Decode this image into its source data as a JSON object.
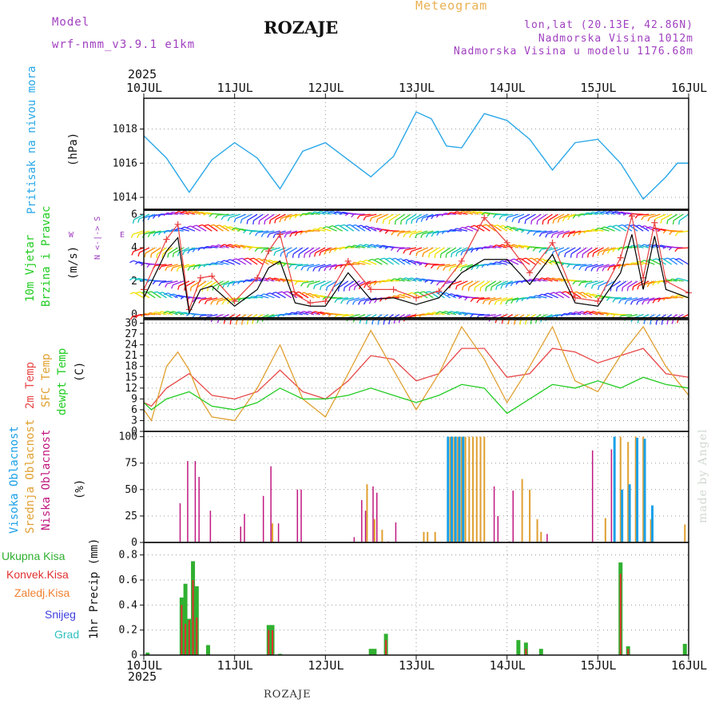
{
  "header": {
    "model_label": "Model",
    "model_name": "wrf-nmm_v3.9.1  e1km",
    "title": "ROZAJE",
    "product": "Meteogram",
    "location": "lon,lat (20.13E, 42.86N)",
    "elevation": "Nadmorska Visina 1012m",
    "model_elevation": "Nadmorska Visina u modelu 1176.68m",
    "year": "2025",
    "footer": "ROZAJE",
    "credit": "made by Angel"
  },
  "time_axis": {
    "labels": [
      "10JUL",
      "11JUL",
      "12JUL",
      "13JUL",
      "14JUL",
      "15JUL",
      "16JUL"
    ]
  },
  "panels": {
    "pressure": {
      "name": "Pritisak na nivou mora",
      "unit": "(hPa)",
      "ticks": [
        "1014",
        "1016",
        "1018"
      ]
    },
    "wind": {
      "name_1": "10m  Vjetar",
      "name_2": "Brzina i Pravac",
      "unit": "(m/s)",
      "ticks": [
        "0",
        "2",
        "4",
        "6"
      ],
      "compass_ns": "N <-|-> S",
      "compass_w": "W",
      "compass_e": "E"
    },
    "temp": {
      "name_1": "2m Temp",
      "name_2": "SFC Temp",
      "name_3": "dewpt Temp",
      "unit": "(C)",
      "ticks": [
        "0",
        "3",
        "6",
        "9",
        "12",
        "15",
        "18",
        "21",
        "24",
        "27",
        "30"
      ]
    },
    "cloud": {
      "name_1": "Visoka Oblacnost",
      "name_2": "Srednja Oblacnost",
      "name_3": "Niska Oblacnost",
      "unit": "(%)",
      "ticks": [
        "0",
        "25",
        "50",
        "75",
        "100"
      ]
    },
    "precip": {
      "legend": [
        "Ukupna  Kisa",
        "Konvek.Kisa",
        "Zaledj.Kisa",
        "Snijeg",
        "Grad"
      ],
      "unit": "1hr Precip (mm)",
      "ticks": [
        "0",
        "0.2",
        "0.4",
        "0.6",
        "0.8"
      ]
    }
  },
  "colors": {
    "pressure": "#2aa8e8",
    "wind_speed": "#000000",
    "wind_gust": "#e84040",
    "temp2m": "#e84848",
    "sfc": "#e0a030",
    "dewpt": "#22cc22",
    "cloud_high": "#1aa0e8",
    "cloud_mid": "#e0a030",
    "cloud_low": "#c01880",
    "precip_total": "#30b030",
    "precip_conv": "#e03030",
    "precip_frz": "#f08030",
    "snow": "#4040e0",
    "hail": "#30c0c0",
    "label_purple": "#a040c0"
  },
  "chart_data": [
    {
      "type": "line",
      "title": "Pritisak na nivou mora",
      "ylabel": "(hPa)",
      "x_unit": "hours since 10JUL 00UTC",
      "ylim": [
        1013.3,
        1019.8
      ],
      "series": [
        {
          "name": "Pritisak na nivou mora",
          "x": [
            0,
            6,
            12,
            18,
            24,
            30,
            36,
            42,
            48,
            54,
            60,
            66,
            72,
            76,
            80,
            84,
            90,
            96,
            102,
            108,
            114,
            120,
            126,
            132,
            138,
            141,
            144
          ],
          "values": [
            1017.6,
            1016.3,
            1014.3,
            1016.2,
            1017.2,
            1016.3,
            1014.5,
            1016.7,
            1017.2,
            1016.2,
            1015.2,
            1016.4,
            1019.0,
            1018.6,
            1017.0,
            1016.9,
            1018.9,
            1018.5,
            1017.4,
            1015.6,
            1017.2,
            1017.4,
            1016.0,
            1013.9,
            1015.2,
            1016.0,
            1016.0
          ]
        }
      ]
    },
    {
      "type": "line",
      "title": "10m Vjetar Brzina i Pravac",
      "ylabel": "(m/s)",
      "x_unit": "hours since 10JUL 00UTC",
      "ylim": [
        -0.3,
        6.3
      ],
      "series": [
        {
          "name": "speed",
          "x": [
            0,
            6,
            9,
            12,
            15,
            18,
            24,
            30,
            33,
            36,
            40,
            44,
            48,
            54,
            60,
            66,
            72,
            78,
            84,
            90,
            96,
            102,
            108,
            114,
            120,
            126,
            129,
            132,
            135,
            138,
            144
          ],
          "values": [
            1.0,
            3.8,
            4.6,
            0.1,
            1.5,
            1.7,
            0.5,
            1.5,
            2.8,
            3.2,
            0.7,
            0.5,
            0.5,
            2.5,
            0.9,
            1.0,
            0.6,
            1.0,
            2.5,
            3.3,
            3.3,
            1.8,
            3.6,
            0.7,
            0.5,
            2.5,
            4.8,
            1.5,
            4.7,
            1.5,
            1.0
          ]
        },
        {
          "name": "gust",
          "x": [
            0,
            6,
            9,
            12,
            15,
            18,
            24,
            30,
            33,
            36,
            40,
            44,
            48,
            54,
            60,
            66,
            72,
            78,
            84,
            90,
            96,
            102,
            108,
            114,
            120,
            126,
            129,
            132,
            135,
            138,
            144
          ],
          "values": [
            1.5,
            4.5,
            5.4,
            0.3,
            2.2,
            2.3,
            0.8,
            2.2,
            3.8,
            4.8,
            1.2,
            0.7,
            0.8,
            3.2,
            1.5,
            1.5,
            1.0,
            1.4,
            3.2,
            5.8,
            4.3,
            2.5,
            4.3,
            1.0,
            0.8,
            3.4,
            5.9,
            2.2,
            5.5,
            2.0,
            1.3
          ]
        }
      ]
    },
    {
      "type": "line",
      "title": "2m Temp / SFC Temp / dewpt Temp",
      "ylabel": "(C)",
      "x_unit": "hours since 10JUL 00UTC",
      "ylim": [
        0,
        31
      ],
      "series": [
        {
          "name": "2m Temp",
          "x": [
            0,
            2,
            6,
            12,
            15,
            18,
            24,
            30,
            36,
            42,
            48,
            54,
            60,
            66,
            72,
            78,
            84,
            90,
            96,
            102,
            108,
            114,
            120,
            126,
            132,
            138,
            144
          ],
          "values": [
            8,
            7,
            12,
            16,
            13,
            10,
            9,
            11,
            17,
            11,
            9,
            14,
            21,
            20,
            14,
            16,
            23,
            23,
            15,
            16,
            23,
            22,
            19,
            21,
            23,
            16,
            15
          ]
        },
        {
          "name": "SFC Temp",
          "x": [
            0,
            2,
            6,
            9,
            12,
            15,
            18,
            24,
            30,
            36,
            42,
            48,
            54,
            60,
            66,
            72,
            78,
            84,
            90,
            96,
            102,
            108,
            114,
            120,
            126,
            132,
            138,
            144
          ],
          "values": [
            6,
            3,
            18,
            22,
            17,
            9,
            4,
            3,
            12,
            24,
            9,
            4,
            16,
            28,
            17,
            6,
            16,
            29,
            20,
            8,
            18,
            29,
            14,
            11,
            21,
            29,
            18,
            10
          ]
        },
        {
          "name": "dewpt Temp",
          "x": [
            0,
            2,
            6,
            12,
            18,
            24,
            30,
            36,
            42,
            48,
            54,
            60,
            66,
            72,
            78,
            84,
            90,
            96,
            102,
            108,
            114,
            120,
            126,
            132,
            138,
            144
          ],
          "values": [
            8,
            6,
            9,
            11,
            7,
            6,
            8,
            12,
            9,
            9,
            10,
            12,
            10,
            8,
            10,
            13,
            12,
            5,
            9,
            13,
            12,
            14,
            12,
            15,
            13,
            12
          ]
        }
      ]
    },
    {
      "type": "bar",
      "title": "Oblacnost",
      "ylabel": "(%)",
      "x_unit": "hours since 10JUL 00UTC",
      "ylim": [
        0,
        105
      ],
      "series": [
        {
          "name": "Niska Oblacnost",
          "x": [
            9,
            11,
            13,
            14,
            17,
            19,
            25,
            26,
            31,
            33,
            35,
            40,
            41,
            55,
            57,
            58,
            60,
            61,
            64,
            66,
            92,
            93,
            96,
            97,
            106,
            118,
            123
          ],
          "values": [
            37,
            77,
            77,
            62,
            30,
            1,
            15,
            27,
            44,
            72,
            18,
            50,
            50,
            5,
            40,
            30,
            53,
            47,
            1,
            19,
            53,
            25,
            1,
            49,
            8,
            87,
            88
          ]
        },
        {
          "name": "Srednja Oblacnost",
          "x": [
            34,
            59,
            61,
            63,
            74,
            75,
            77,
            81,
            82,
            83,
            84,
            85,
            86,
            87,
            88,
            89,
            90,
            100,
            102,
            104,
            105,
            122,
            126,
            128,
            130,
            132,
            134,
            143
          ],
          "values": [
            18,
            55,
            22,
            12,
            10,
            10,
            10,
            100,
            100,
            100,
            100,
            100,
            100,
            100,
            100,
            100,
            100,
            60,
            50,
            22,
            10,
            23,
            100,
            95,
            100,
            100,
            22,
            17
          ]
        },
        {
          "name": "Visoka Oblacnost",
          "x": [
            81,
            82,
            83,
            84,
            85,
            125,
            127,
            129,
            131,
            133,
            135
          ],
          "values": [
            100,
            100,
            100,
            100,
            100,
            100,
            50,
            55,
            99,
            98,
            35
          ]
        }
      ]
    },
    {
      "type": "bar",
      "title": "1hr Precip",
      "ylabel": "1hr Precip (mm)",
      "x_unit": "hours since 10JUL 00UTC",
      "ylim": [
        0,
        0.9
      ],
      "series": [
        {
          "name": "Ukupna Kisa",
          "x": [
            1,
            10,
            11,
            12,
            13,
            14,
            17,
            33,
            34,
            36,
            60,
            61,
            64,
            99,
            101,
            105,
            126,
            128,
            143
          ],
          "values": [
            0.02,
            0.46,
            0.57,
            0.29,
            0.75,
            0.55,
            0.08,
            0.24,
            0.24,
            0.01,
            0.05,
            0.05,
            0.17,
            0.12,
            0.1,
            0.05,
            0.74,
            0.07,
            0.09
          ]
        },
        {
          "name": "Konvek.Kisa",
          "x": [
            10,
            11,
            12,
            13,
            14,
            33,
            34,
            64,
            101,
            126,
            128
          ],
          "values": [
            0.4,
            0.25,
            0.28,
            0.6,
            0.3,
            0.2,
            0.2,
            0.12,
            0.05,
            0.65,
            0.05
          ]
        }
      ]
    }
  ]
}
